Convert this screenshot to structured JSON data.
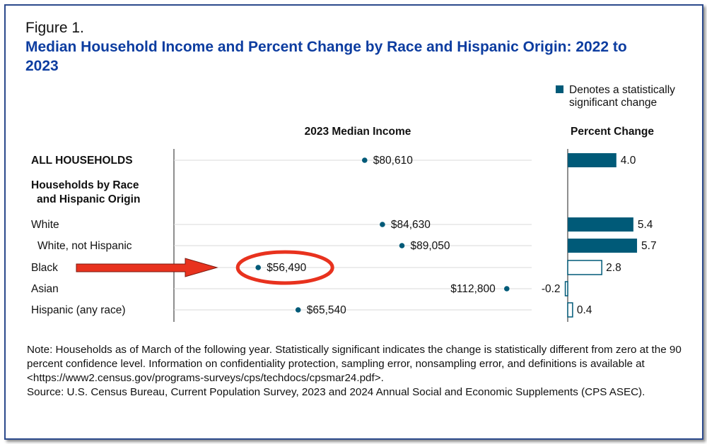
{
  "figure_label": "Figure 1.",
  "title": "Median Household Income and Percent Change by Race and Hispanic Origin: 2022 to 2023",
  "legend_text_line1": "Denotes a statistically",
  "legend_text_line2": "significant change",
  "colors": {
    "accent": "#005a78",
    "title": "#0d3da0",
    "annotation": "#e8321e",
    "frame": "#2c4a8c"
  },
  "chart_data": {
    "type": "scatter",
    "panels": [
      {
        "name": "income",
        "header": "2023 Median Income",
        "type": "scatter"
      },
      {
        "name": "percent_change",
        "header": "Percent Change",
        "type": "bar"
      }
    ],
    "group_header_line1": "Households by Race",
    "group_header_line2": "and Hispanic Origin",
    "rows": [
      {
        "label": "ALL HOUSEHOLDS",
        "bold": true,
        "indent": false,
        "income": 80610,
        "income_label": "$80,610",
        "label_side": "right",
        "change": 4.0,
        "change_label": "4.0",
        "significant": true
      },
      {
        "label": "White",
        "bold": false,
        "indent": false,
        "income": 84630,
        "income_label": "$84,630",
        "label_side": "right",
        "change": 5.4,
        "change_label": "5.4",
        "significant": true
      },
      {
        "label": "White, not Hispanic",
        "bold": false,
        "indent": true,
        "income": 89050,
        "income_label": "$89,050",
        "label_side": "right",
        "change": 5.7,
        "change_label": "5.7",
        "significant": true
      },
      {
        "label": "Black",
        "bold": false,
        "indent": false,
        "income": 56490,
        "income_label": "$56,490",
        "label_side": "right",
        "change": 2.8,
        "change_label": "2.8",
        "significant": false,
        "highlighted": true
      },
      {
        "label": "Asian",
        "bold": false,
        "indent": false,
        "income": 112800,
        "income_label": "$112,800",
        "label_side": "left",
        "change": -0.2,
        "change_label": "-0.2",
        "significant": false
      },
      {
        "label": "Hispanic (any race)",
        "bold": false,
        "indent": false,
        "income": 65540,
        "income_label": "$65,540",
        "label_side": "right",
        "change": 0.4,
        "change_label": "0.4",
        "significant": false
      }
    ]
  },
  "note": "Note: Households as of March of the following year. Statistically significant indicates the change is statistically different from zero at the 90 percent confidence level. Information on confidentiality protection, sampling error, nonsampling error, and definitions is available at <https://www2.census.gov/programs-surveys/cps/techdocs/cpsmar24.pdf>.",
  "source": "Source: U.S. Census Bureau, Current Population Survey, 2023 and 2024 Annual Social and Economic Supplements (CPS ASEC)."
}
